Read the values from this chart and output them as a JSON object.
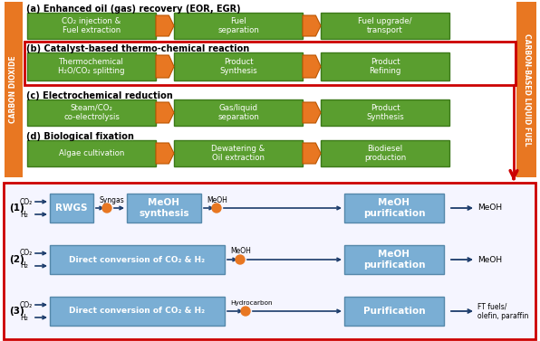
{
  "bg_color": "#ffffff",
  "orange_bar_color": "#E87722",
  "green_box_color": "#5A9E2F",
  "green_box_edge": "#3d7a1a",
  "blue_box_fill": "#7aaed4",
  "blue_box_edge": "#5588aa",
  "orange_arrow_color": "#E87722",
  "red_border_color": "#CC0000",
  "dark_blue_arrow": "#1a3a6a",
  "section_a_title": "(a) Enhanced oil (gas) recovery (EOR, EGR)",
  "section_b_title": "(b) Catalyst-based thermo-chemical reaction",
  "section_c_title": "(c) Electrochemical reduction",
  "section_d_title": "(d) Biological fixation",
  "left_label": "CARBON DIOXIDE",
  "right_label": "CARBON-BASED LIQUID FUEL",
  "row_a": [
    "CO₂ injection &\nFuel extraction",
    "Fuel\nseparation",
    "Fuel upgrade/\ntransport"
  ],
  "row_b": [
    "Thermochemical\nH₂O/CO₂ splitting",
    "Product\nSynthesis",
    "Product\nRefining"
  ],
  "row_c": [
    "Steam/CO₂\nco-electrolysis",
    "Gas/liquid\nseparation",
    "Product\nSynthesis"
  ],
  "row_d": [
    "Algae cultivation",
    "Dewatering &\nOil extraction",
    "Biodiesel\nproduction"
  ]
}
